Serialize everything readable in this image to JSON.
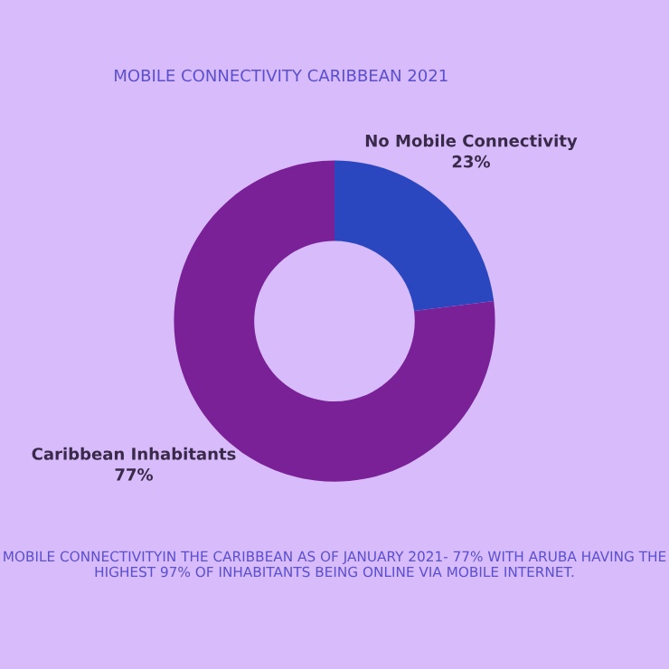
{
  "chart_data": {
    "type": "donut",
    "title": "MOBILE CONNECTIVITY CARIBBEAN 2021",
    "categories": [
      "No Mobile Connectivity",
      "Caribbean Inhabitants"
    ],
    "values": [
      23,
      77
    ],
    "colors": [
      "#2a47c0",
      "#7a2198"
    ],
    "value_labels": [
      "23%",
      "77%"
    ],
    "annotations": [
      "MOBILE CONNECTIVITYIN THE CARIBBEAN AS OF JANUARY 2021- 77% WITH ARUBA HAVING THE HIGHEST 97% OF INHABITANTS BEING ONLINE VIA MOBILE INTERNET."
    ]
  }
}
